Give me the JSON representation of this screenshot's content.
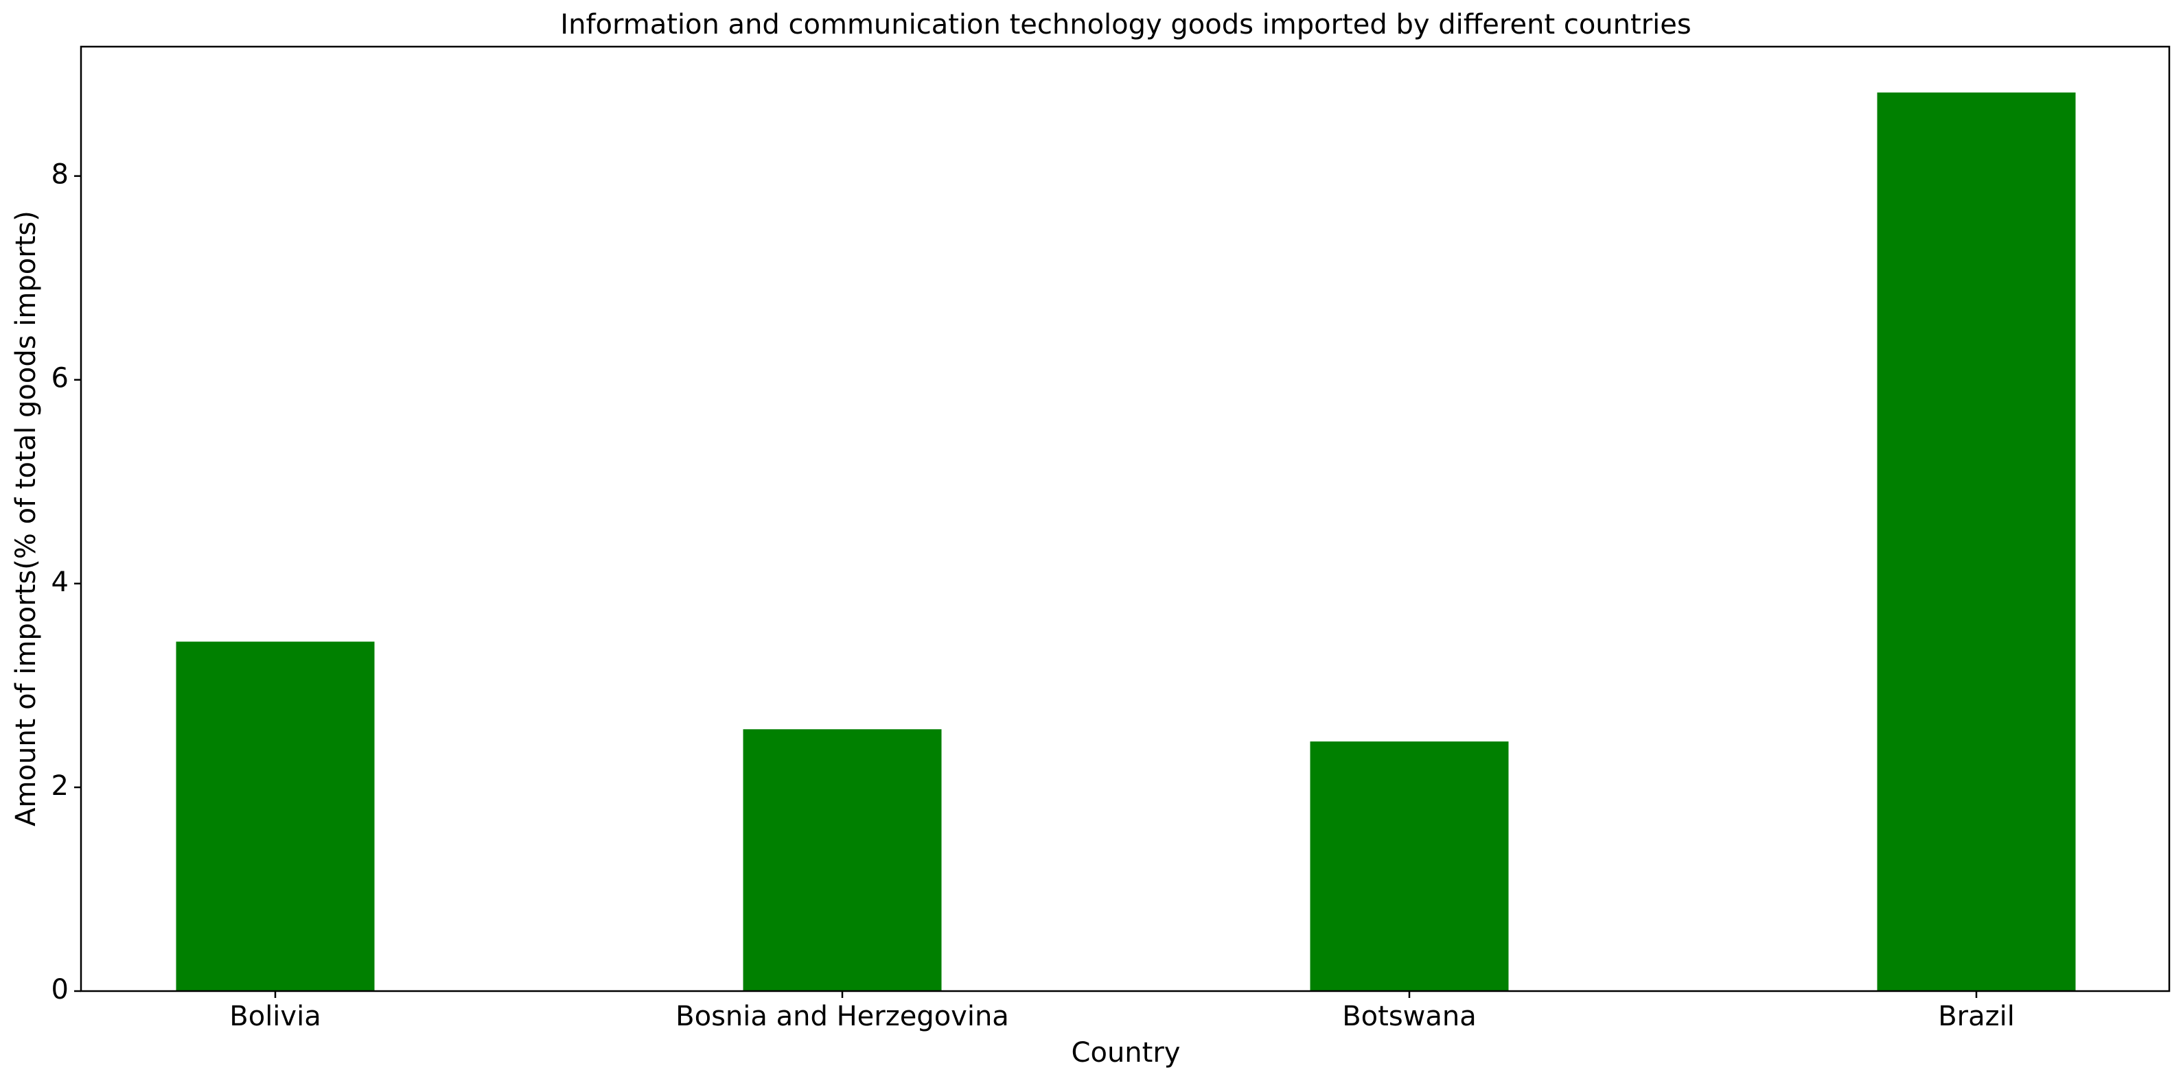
{
  "chart_data": {
    "type": "bar",
    "title": "Information and communication technology goods imported by different countries",
    "xlabel": "Country",
    "ylabel": "Amount of imports(% of total goods imports)",
    "categories": [
      "Bolivia",
      "Bosnia and Herzegovina",
      "Botswana",
      "Brazil"
    ],
    "values": [
      3.43,
      2.57,
      2.45,
      8.82
    ],
    "ylim": [
      0,
      9.27
    ],
    "yticks": [
      "0",
      "2",
      "4",
      "6",
      "8"
    ],
    "grid": false,
    "legend": "none",
    "bar_color": "#008000"
  }
}
